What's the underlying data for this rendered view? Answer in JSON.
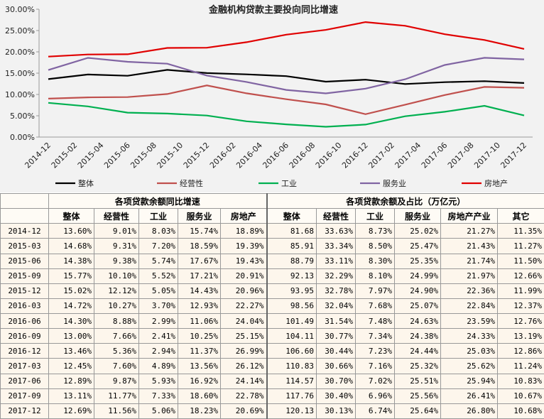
{
  "chart_data": {
    "type": "line",
    "title": "金融机构贷款主要投向同比增速",
    "x": [
      "2014-12",
      "2015-03",
      "2015-06",
      "2015-09",
      "2015-12",
      "2016-03",
      "2016-06",
      "2016-09",
      "2016-12",
      "2017-03",
      "2017-06",
      "2017-09",
      "2017-12"
    ],
    "xlim": [
      "2014-12",
      "2017-12"
    ],
    "xticks": [
      "2014-12",
      "2015-02",
      "2015-04",
      "2015-06",
      "2015-08",
      "2015-10",
      "2015-12",
      "2016-02",
      "2016-04",
      "2016-06",
      "2016-08",
      "2016-10",
      "2016-12",
      "2017-02",
      "2017-04",
      "2017-06",
      "2017-08",
      "2017-10",
      "2017-12"
    ],
    "ylim": [
      0,
      30
    ],
    "yticks": [
      {
        "value": 0,
        "label": "0.00%"
      },
      {
        "value": 5,
        "label": "5.00%"
      },
      {
        "value": 10,
        "label": "10.00%"
      },
      {
        "value": 15,
        "label": "15.00%"
      },
      {
        "value": 20,
        "label": "20.00%"
      },
      {
        "value": 25,
        "label": "25.00%"
      },
      {
        "value": 30,
        "label": "30.00%"
      }
    ],
    "grid": false,
    "legend": "bottom",
    "series": [
      {
        "name": "整体",
        "color": "#000000",
        "values": [
          13.6,
          14.68,
          14.38,
          15.77,
          15.02,
          14.72,
          14.3,
          13.0,
          13.46,
          12.45,
          12.89,
          13.11,
          12.69
        ]
      },
      {
        "name": "经营性",
        "color": "#c0504d",
        "values": [
          9.01,
          9.31,
          9.38,
          10.1,
          12.12,
          10.27,
          8.88,
          7.66,
          5.36,
          7.6,
          9.87,
          11.77,
          11.56
        ]
      },
      {
        "name": "工业",
        "color": "#00b050",
        "values": [
          8.03,
          7.2,
          5.74,
          5.52,
          5.05,
          3.7,
          2.99,
          2.41,
          2.94,
          4.89,
          5.93,
          7.33,
          5.06
        ]
      },
      {
        "name": "服务业",
        "color": "#8064a2",
        "values": [
          15.74,
          18.59,
          17.67,
          17.21,
          14.43,
          12.93,
          11.06,
          10.25,
          11.37,
          13.56,
          16.92,
          18.6,
          18.23
        ]
      },
      {
        "name": "房地产",
        "color": "#e00000",
        "values": [
          18.89,
          19.39,
          19.43,
          20.91,
          20.96,
          22.27,
          24.04,
          25.15,
          26.99,
          26.12,
          24.14,
          22.78,
          20.69
        ]
      }
    ]
  },
  "table": {
    "left_title": "各项贷款余额同比增速",
    "right_title": "各项贷款余额及占比（万亿元）",
    "columns": [
      "整体",
      "经营性",
      "工业",
      "服务业",
      "房地产",
      "整体",
      "经营性",
      "工业",
      "服务业",
      "房地产产业",
      "其它"
    ],
    "rows": [
      [
        "2014-12",
        "13.60%",
        "9.01%",
        "8.03%",
        "15.74%",
        "18.89%",
        "81.68",
        "33.63%",
        "8.73%",
        "25.02%",
        "21.27%",
        "11.35%"
      ],
      [
        "2015-03",
        "14.68%",
        "9.31%",
        "7.20%",
        "18.59%",
        "19.39%",
        "85.91",
        "33.34%",
        "8.50%",
        "25.47%",
        "21.43%",
        "11.27%"
      ],
      [
        "2015-06",
        "14.38%",
        "9.38%",
        "5.74%",
        "17.67%",
        "19.43%",
        "88.79",
        "33.11%",
        "8.30%",
        "25.35%",
        "21.74%",
        "11.50%"
      ],
      [
        "2015-09",
        "15.77%",
        "10.10%",
        "5.52%",
        "17.21%",
        "20.91%",
        "92.13",
        "32.29%",
        "8.10%",
        "24.99%",
        "21.97%",
        "12.66%"
      ],
      [
        "2015-12",
        "15.02%",
        "12.12%",
        "5.05%",
        "14.43%",
        "20.96%",
        "93.95",
        "32.78%",
        "7.97%",
        "24.90%",
        "22.36%",
        "11.99%"
      ],
      [
        "2016-03",
        "14.72%",
        "10.27%",
        "3.70%",
        "12.93%",
        "22.27%",
        "98.56",
        "32.04%",
        "7.68%",
        "25.07%",
        "22.84%",
        "12.37%"
      ],
      [
        "2016-06",
        "14.30%",
        "8.88%",
        "2.99%",
        "11.06%",
        "24.04%",
        "101.49",
        "31.54%",
        "7.48%",
        "24.63%",
        "23.59%",
        "12.76%"
      ],
      [
        "2016-09",
        "13.00%",
        "7.66%",
        "2.41%",
        "10.25%",
        "25.15%",
        "104.11",
        "30.77%",
        "7.34%",
        "24.38%",
        "24.33%",
        "13.19%"
      ],
      [
        "2016-12",
        "13.46%",
        "5.36%",
        "2.94%",
        "11.37%",
        "26.99%",
        "106.60",
        "30.44%",
        "7.23%",
        "24.44%",
        "25.03%",
        "12.86%"
      ],
      [
        "2017-03",
        "12.45%",
        "7.60%",
        "4.89%",
        "13.56%",
        "26.12%",
        "110.83",
        "30.66%",
        "7.16%",
        "25.32%",
        "25.62%",
        "11.24%"
      ],
      [
        "2017-06",
        "12.89%",
        "9.87%",
        "5.93%",
        "16.92%",
        "24.14%",
        "114.57",
        "30.70%",
        "7.02%",
        "25.51%",
        "25.94%",
        "10.83%"
      ],
      [
        "2017-09",
        "13.11%",
        "11.77%",
        "7.33%",
        "18.60%",
        "22.78%",
        "117.76",
        "30.40%",
        "6.96%",
        "25.56%",
        "26.41%",
        "10.67%"
      ],
      [
        "2017-12",
        "12.69%",
        "11.56%",
        "5.06%",
        "18.23%",
        "20.69%",
        "120.13",
        "30.13%",
        "6.74%",
        "25.64%",
        "26.80%",
        "10.68%"
      ]
    ]
  }
}
